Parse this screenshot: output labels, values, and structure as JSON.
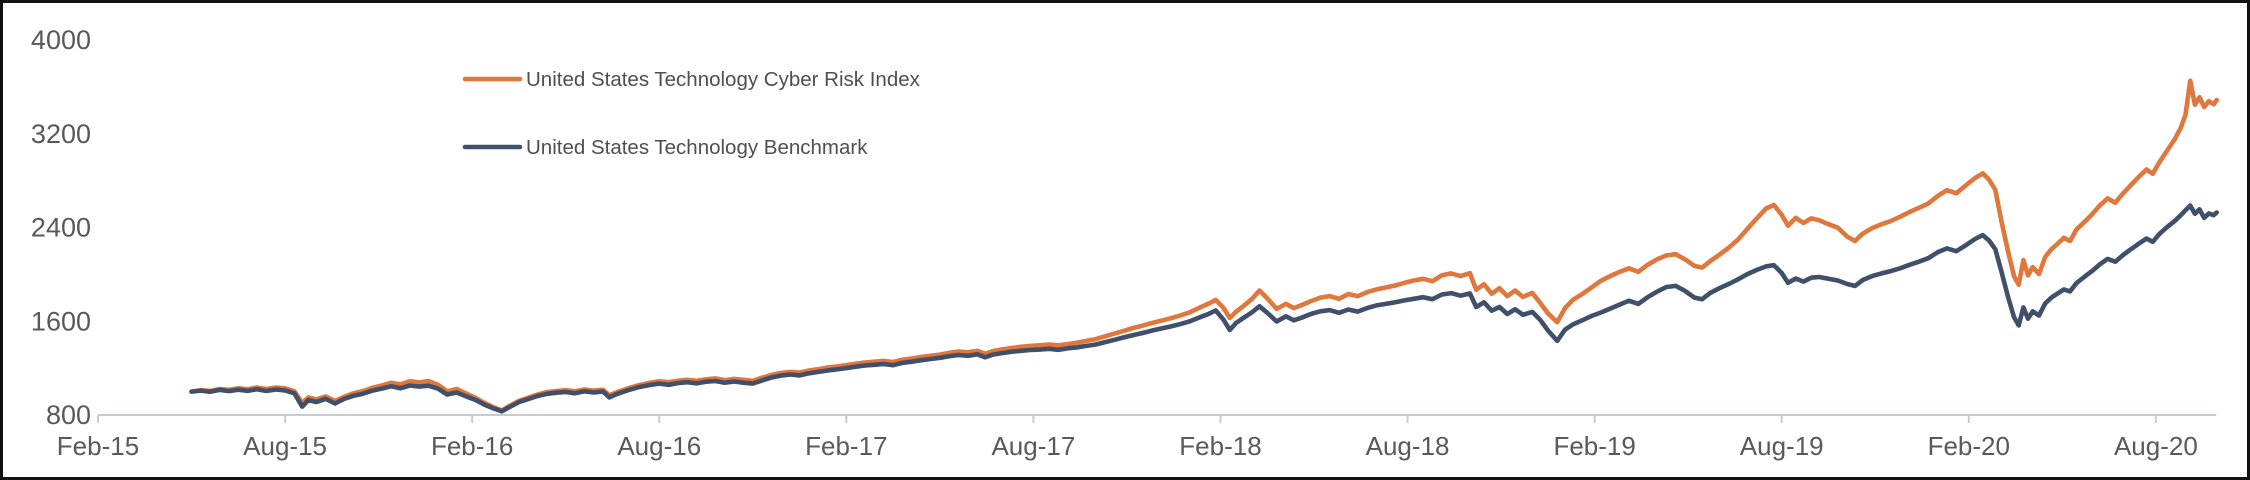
{
  "chart_data": {
    "type": "line",
    "title": "",
    "x_unit": "months since Feb-2015",
    "x_axis": {
      "tick_labels": [
        "Feb-15",
        "Aug-15",
        "Feb-16",
        "Aug-16",
        "Feb-17",
        "Aug-17",
        "Feb-18",
        "Aug-18",
        "Feb-19",
        "Aug-19",
        "Feb-20",
        "Aug-20"
      ],
      "tick_positions_months": [
        0,
        6,
        12,
        18,
        24,
        30,
        36,
        42,
        48,
        54,
        60,
        66
      ],
      "domain_months": [
        0,
        68
      ]
    },
    "y_axis": {
      "tick_labels": [
        "800",
        "1600",
        "2400",
        "3200",
        "4000"
      ],
      "tick_values": [
        800,
        1600,
        2400,
        3200,
        4000
      ],
      "range": [
        800,
        4000
      ]
    },
    "grid": false,
    "legend_position": "top-center-left",
    "colors": {
      "cri_line": "#E0773C",
      "benchmark_line": "#40506B",
      "axis": "#C9CCCF",
      "tick": "#C9CCCF",
      "axis_label": "#595959",
      "legend_label": "#4F4F4F"
    },
    "x": [
      3.0,
      3.3,
      3.6,
      3.9,
      4.2,
      4.5,
      4.8,
      5.1,
      5.4,
      5.7,
      6.0,
      6.3,
      6.55,
      6.75,
      7.0,
      7.3,
      7.6,
      7.9,
      8.2,
      8.5,
      8.8,
      9.1,
      9.4,
      9.7,
      10.0,
      10.3,
      10.6,
      10.9,
      11.2,
      11.5,
      11.8,
      12.1,
      12.4,
      12.7,
      12.95,
      13.2,
      13.5,
      13.8,
      14.1,
      14.4,
      14.7,
      15.0,
      15.3,
      15.6,
      15.9,
      16.2,
      16.4,
      16.65,
      17.0,
      17.35,
      17.7,
      18.0,
      18.3,
      18.6,
      18.9,
      19.2,
      19.5,
      19.8,
      20.1,
      20.4,
      20.7,
      21.0,
      21.3,
      21.6,
      21.9,
      22.2,
      22.5,
      22.8,
      23.1,
      23.4,
      23.7,
      24.0,
      24.3,
      24.6,
      24.9,
      25.2,
      25.5,
      25.8,
      26.1,
      26.4,
      26.7,
      27.0,
      27.3,
      27.6,
      27.9,
      28.2,
      28.45,
      28.7,
      29.0,
      29.3,
      29.6,
      29.9,
      30.2,
      30.5,
      30.8,
      31.1,
      31.4,
      31.7,
      32.0,
      32.3,
      32.6,
      32.9,
      33.2,
      33.5,
      33.8,
      34.1,
      34.4,
      34.7,
      35.0,
      35.3,
      35.6,
      35.85,
      36.1,
      36.3,
      36.5,
      36.7,
      37.0,
      37.25,
      37.5,
      37.8,
      38.1,
      38.35,
      38.6,
      38.9,
      39.2,
      39.5,
      39.8,
      40.1,
      40.4,
      40.7,
      41.0,
      41.3,
      41.6,
      41.9,
      42.2,
      42.5,
      42.8,
      43.1,
      43.4,
      43.7,
      44.0,
      44.2,
      44.45,
      44.7,
      44.95,
      45.2,
      45.45,
      45.7,
      46.0,
      46.25,
      46.5,
      46.8,
      47.05,
      47.3,
      47.6,
      47.9,
      48.2,
      48.5,
      48.8,
      49.1,
      49.4,
      49.7,
      50.0,
      50.3,
      50.6,
      50.9,
      51.2,
      51.45,
      51.7,
      52.0,
      52.3,
      52.6,
      52.9,
      53.2,
      53.5,
      53.75,
      54.0,
      54.2,
      54.45,
      54.7,
      54.95,
      55.2,
      55.5,
      55.8,
      56.1,
      56.35,
      56.6,
      56.9,
      57.2,
      57.5,
      57.8,
      58.1,
      58.4,
      58.7,
      59.0,
      59.3,
      59.6,
      59.9,
      60.2,
      60.45,
      60.65,
      60.85,
      61.05,
      61.25,
      61.45,
      61.6,
      61.75,
      61.9,
      62.05,
      62.25,
      62.45,
      62.65,
      62.85,
      63.05,
      63.25,
      63.45,
      63.7,
      63.95,
      64.2,
      64.45,
      64.7,
      64.95,
      65.2,
      65.45,
      65.7,
      65.9,
      66.1,
      66.35,
      66.6,
      66.8,
      66.95,
      67.1,
      67.25,
      67.4,
      67.55,
      67.7,
      67.85,
      67.95
    ],
    "series": [
      {
        "name": "United States Technology Cyber Risk Index",
        "color": "#E0773C",
        "values": [
          1000,
          1012,
          1005,
          1022,
          1015,
          1028,
          1020,
          1035,
          1022,
          1035,
          1028,
          1002,
          905,
          950,
          932,
          958,
          920,
          955,
          985,
          1005,
          1032,
          1052,
          1075,
          1062,
          1088,
          1078,
          1090,
          1058,
          1002,
          1022,
          985,
          948,
          902,
          865,
          838,
          878,
          920,
          948,
          975,
          995,
          1005,
          1012,
          1002,
          1018,
          1008,
          1015,
          968,
          995,
          1028,
          1055,
          1075,
          1088,
          1080,
          1092,
          1100,
          1092,
          1105,
          1112,
          1098,
          1108,
          1100,
          1092,
          1118,
          1142,
          1158,
          1168,
          1162,
          1180,
          1192,
          1205,
          1215,
          1225,
          1238,
          1248,
          1255,
          1262,
          1252,
          1272,
          1282,
          1295,
          1305,
          1315,
          1330,
          1342,
          1335,
          1348,
          1322,
          1345,
          1360,
          1372,
          1382,
          1390,
          1395,
          1402,
          1395,
          1405,
          1418,
          1432,
          1448,
          1472,
          1495,
          1518,
          1542,
          1562,
          1585,
          1605,
          1625,
          1648,
          1675,
          1712,
          1748,
          1782,
          1712,
          1628,
          1682,
          1722,
          1788,
          1862,
          1795,
          1705,
          1748,
          1712,
          1738,
          1772,
          1802,
          1815,
          1792,
          1832,
          1815,
          1848,
          1872,
          1888,
          1905,
          1928,
          1948,
          1962,
          1942,
          1992,
          2008,
          1985,
          2010,
          1868,
          1915,
          1835,
          1882,
          1815,
          1862,
          1808,
          1842,
          1758,
          1668,
          1592,
          1712,
          1782,
          1832,
          1888,
          1945,
          1985,
          2022,
          2052,
          2022,
          2082,
          2128,
          2162,
          2172,
          2128,
          2072,
          2058,
          2112,
          2168,
          2228,
          2298,
          2388,
          2478,
          2562,
          2592,
          2508,
          2415,
          2482,
          2438,
          2478,
          2462,
          2428,
          2398,
          2322,
          2285,
          2348,
          2395,
          2428,
          2455,
          2492,
          2532,
          2568,
          2605,
          2668,
          2718,
          2692,
          2758,
          2822,
          2862,
          2808,
          2722,
          2452,
          2205,
          1985,
          1912,
          2122,
          1992,
          2062,
          2002,
          2148,
          2215,
          2262,
          2312,
          2285,
          2382,
          2445,
          2512,
          2588,
          2648,
          2612,
          2692,
          2762,
          2832,
          2895,
          2858,
          2952,
          3052,
          3152,
          3252,
          3362,
          3652,
          3448,
          3512,
          3428,
          3478,
          3452,
          3488
        ]
      },
      {
        "name": "United States Technology Benchmark",
        "color": "#40506B",
        "values": [
          1000,
          1008,
          998,
          1014,
          1004,
          1016,
          1006,
          1020,
          1005,
          1018,
          1010,
          985,
          872,
          928,
          910,
          938,
          898,
          938,
          965,
          982,
          1008,
          1025,
          1045,
          1028,
          1052,
          1042,
          1050,
          1025,
          975,
          992,
          960,
          930,
          888,
          855,
          832,
          868,
          910,
          936,
          962,
          980,
          990,
          996,
          985,
          1002,
          992,
          1000,
          950,
          980,
          1012,
          1038,
          1056,
          1068,
          1058,
          1072,
          1080,
          1070,
          1084,
          1090,
          1076,
          1086,
          1076,
          1068,
          1095,
          1120,
          1136,
          1146,
          1138,
          1156,
          1168,
          1180,
          1190,
          1200,
          1212,
          1222,
          1228,
          1235,
          1225,
          1245,
          1255,
          1268,
          1278,
          1288,
          1302,
          1312,
          1305,
          1318,
          1292,
          1315,
          1328,
          1340,
          1348,
          1355,
          1358,
          1365,
          1356,
          1368,
          1378,
          1390,
          1402,
          1422,
          1442,
          1462,
          1482,
          1500,
          1520,
          1538,
          1555,
          1575,
          1598,
          1630,
          1660,
          1692,
          1612,
          1525,
          1585,
          1622,
          1675,
          1728,
          1672,
          1598,
          1642,
          1608,
          1630,
          1662,
          1685,
          1695,
          1672,
          1700,
          1682,
          1712,
          1735,
          1748,
          1762,
          1778,
          1792,
          1805,
          1788,
          1828,
          1840,
          1818,
          1838,
          1722,
          1762,
          1690,
          1722,
          1662,
          1702,
          1655,
          1680,
          1612,
          1522,
          1432,
          1528,
          1572,
          1608,
          1645,
          1675,
          1708,
          1742,
          1775,
          1748,
          1805,
          1852,
          1892,
          1902,
          1858,
          1802,
          1788,
          1840,
          1882,
          1918,
          1958,
          2002,
          2038,
          2068,
          2078,
          2012,
          1928,
          1965,
          1938,
          1972,
          1978,
          1962,
          1948,
          1918,
          1902,
          1952,
          1985,
          2008,
          2028,
          2052,
          2082,
          2108,
          2138,
          2188,
          2222,
          2198,
          2248,
          2302,
          2335,
          2288,
          2215,
          2022,
          1815,
          1635,
          1565,
          1718,
          1622,
          1685,
          1648,
          1752,
          1802,
          1838,
          1872,
          1855,
          1925,
          1978,
          2028,
          2085,
          2132,
          2108,
          2165,
          2215,
          2262,
          2305,
          2278,
          2342,
          2402,
          2455,
          2505,
          2548,
          2588,
          2518,
          2555,
          2482,
          2520,
          2505,
          2528
        ]
      }
    ]
  }
}
